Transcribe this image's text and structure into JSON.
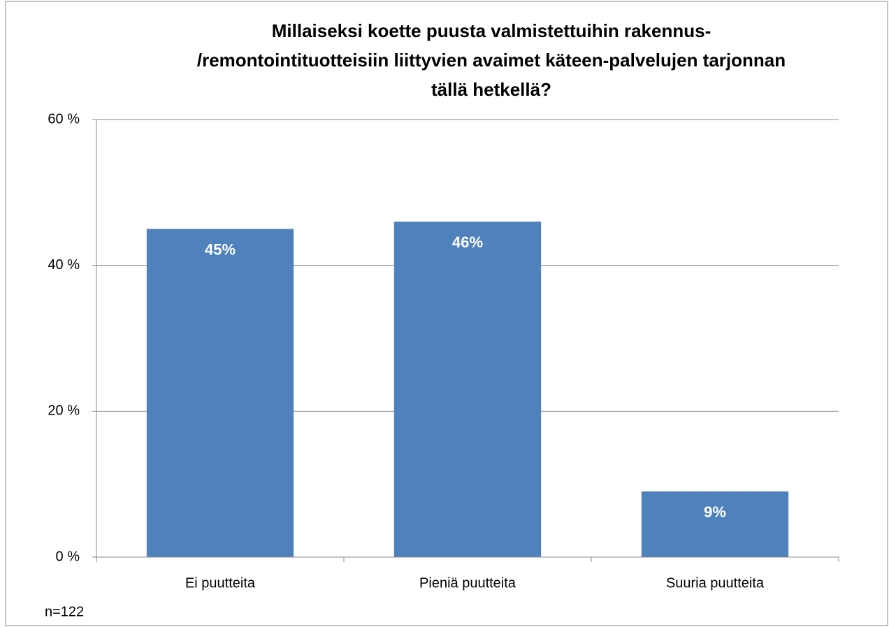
{
  "chart_data": {
    "type": "bar",
    "title": [
      "Millaiseksi koette puusta valmistettuihin rakennus-",
      "/remontointituotteisiin liittyvien avaimet käteen-palvelujen tarjonnan",
      "tällä hetkellä?"
    ],
    "categories": [
      "Ei puutteita",
      "Pieniä puutteita",
      "Suuria puutteita"
    ],
    "values": [
      45,
      46,
      9
    ],
    "value_labels": [
      "45%",
      "46%",
      "9%"
    ],
    "color": "#4f81bd",
    "ylim": [
      0,
      60
    ],
    "yticks": [
      {
        "value": 0,
        "label": "0 %"
      },
      {
        "value": 20,
        "label": "20 %"
      },
      {
        "value": 40,
        "label": "40 %"
      },
      {
        "value": 60,
        "label": "60 %"
      }
    ],
    "grid": true,
    "annotation": "n=122"
  }
}
